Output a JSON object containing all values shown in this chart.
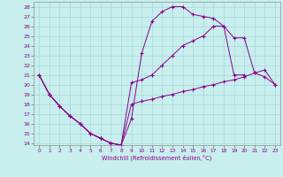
{
  "xlabel": "Windchill (Refroidissement éolien,°C)",
  "xlim": [
    -0.5,
    23.5
  ],
  "ylim": [
    13.8,
    28.5
  ],
  "xticks": [
    0,
    1,
    2,
    3,
    4,
    5,
    6,
    7,
    8,
    9,
    10,
    11,
    12,
    13,
    14,
    15,
    16,
    17,
    18,
    19,
    20,
    21,
    22,
    23
  ],
  "yticks": [
    14,
    15,
    16,
    17,
    18,
    19,
    20,
    21,
    22,
    23,
    24,
    25,
    26,
    27,
    28
  ],
  "bg_color": "#c8eeee",
  "line_color": "#880088",
  "grid_color": "#a8d8d8",
  "line1_x": [
    0,
    1,
    2,
    3,
    4,
    5,
    6,
    7,
    8,
    9,
    10,
    11,
    12,
    13,
    14,
    15,
    16,
    17,
    18,
    19,
    20
  ],
  "line1_y": [
    21.0,
    19.0,
    17.8,
    16.8,
    16.0,
    15.0,
    14.5,
    14.0,
    13.8,
    16.5,
    23.2,
    26.5,
    27.5,
    28.0,
    28.0,
    27.2,
    27.0,
    26.8,
    26.0,
    21.0,
    21.0
  ],
  "line2_x": [
    0,
    1,
    2,
    3,
    4,
    5,
    6,
    7,
    8,
    9,
    10,
    11,
    12,
    13,
    14,
    15,
    16,
    17,
    18,
    19,
    20,
    21,
    22,
    23
  ],
  "line2_y": [
    21.0,
    19.0,
    17.8,
    16.8,
    16.0,
    15.0,
    14.5,
    14.0,
    13.8,
    20.2,
    20.5,
    21.0,
    22.0,
    23.0,
    24.0,
    24.5,
    25.0,
    26.0,
    26.0,
    24.8,
    24.8,
    21.2,
    20.8,
    20.0
  ],
  "line3_x": [
    0,
    1,
    2,
    3,
    4,
    5,
    6,
    7,
    8,
    9,
    10,
    11,
    12,
    13,
    14,
    15,
    16,
    17,
    18,
    19,
    20,
    21,
    22,
    23
  ],
  "line3_y": [
    21.0,
    19.0,
    17.8,
    16.8,
    16.0,
    15.0,
    14.5,
    14.0,
    13.8,
    18.0,
    18.3,
    18.5,
    18.8,
    19.0,
    19.3,
    19.5,
    19.8,
    20.0,
    20.3,
    20.5,
    20.8,
    21.2,
    21.5,
    20.0
  ]
}
